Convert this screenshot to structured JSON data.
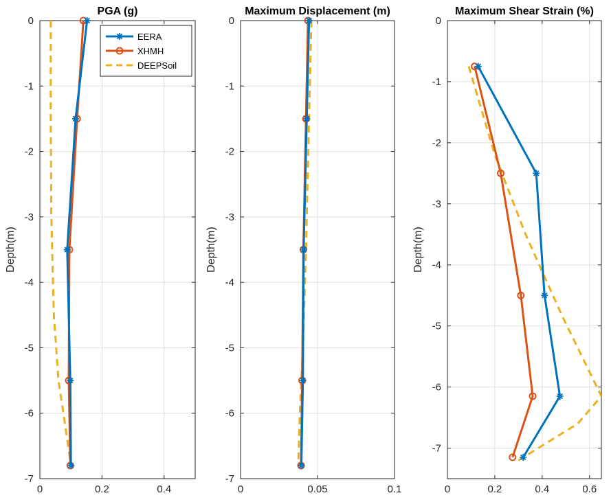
{
  "chart_data": [
    {
      "type": "line",
      "title": "PGA (g)",
      "xlabel": "",
      "ylabel": "Depth(m)",
      "xlim": [
        0,
        0.5
      ],
      "ylim": [
        -7,
        0
      ],
      "xticks": [
        "0",
        "0.2",
        "0.4"
      ],
      "xtick_values": [
        0,
        0.2,
        0.4
      ],
      "yticks": [
        "0",
        "-1",
        "-2",
        "-3",
        "-4",
        "-5",
        "-6",
        "-7"
      ],
      "ytick_values": [
        0,
        -1,
        -2,
        -3,
        -4,
        -5,
        -6,
        -7
      ],
      "grid": true,
      "legend": "top-right",
      "series": [
        {
          "name": "EERA",
          "color": "#0072BD",
          "marker": "star",
          "style": "solid",
          "x": [
            0.152,
            0.115,
            0.088,
            0.098,
            0.1
          ],
          "y": [
            0,
            -1.5,
            -3.5,
            -5.5,
            -6.8
          ]
        },
        {
          "name": "XHMH",
          "color": "#D95319",
          "marker": "circle",
          "style": "solid",
          "x": [
            0.14,
            0.12,
            0.095,
            0.093,
            0.098
          ],
          "y": [
            0,
            -1.5,
            -3.5,
            -5.5,
            -6.8
          ]
        },
        {
          "name": "DEEPSoil",
          "color": "#EDB120",
          "marker": "none",
          "style": "dashed",
          "x": [
            0.035,
            0.035,
            0.037,
            0.045,
            0.06,
            0.085,
            0.1
          ],
          "y": [
            0,
            -1.5,
            -3.0,
            -4.5,
            -5.5,
            -6.3,
            -6.8
          ]
        }
      ]
    },
    {
      "type": "line",
      "title": "Maximum  Displacement (m)",
      "xlabel": "",
      "ylabel": "Depth(m)",
      "xlim": [
        0,
        0.1
      ],
      "ylim": [
        -7,
        0
      ],
      "xticks": [
        "0",
        "0.05",
        "0.1"
      ],
      "xtick_values": [
        0,
        0.05,
        0.1
      ],
      "yticks": [
        "0",
        "-1",
        "-2",
        "-3",
        "-4",
        "-5",
        "-6",
        "-7"
      ],
      "ytick_values": [
        0,
        -1,
        -2,
        -3,
        -4,
        -5,
        -6,
        -7
      ],
      "grid": true,
      "series": [
        {
          "name": "EERA",
          "color": "#0072BD",
          "marker": "star",
          "style": "solid",
          "x": [
            0.0445,
            0.043,
            0.041,
            0.0405,
            0.0395
          ],
          "y": [
            0,
            -1.5,
            -3.5,
            -5.5,
            -6.8
          ]
        },
        {
          "name": "XHMH",
          "color": "#D95319",
          "marker": "circle",
          "style": "solid",
          "x": [
            0.0438,
            0.0425,
            0.0408,
            0.04,
            0.0393
          ],
          "y": [
            0,
            -1.5,
            -3.5,
            -5.5,
            -6.8
          ]
        },
        {
          "name": "DEEPSoil",
          "color": "#EDB120",
          "marker": "none",
          "style": "dashed",
          "x": [
            0.046,
            0.0445,
            0.0425,
            0.0405,
            0.0385,
            0.0375
          ],
          "y": [
            0,
            -1.5,
            -3.5,
            -5.0,
            -6.0,
            -6.8
          ]
        }
      ]
    },
    {
      "type": "line",
      "title": "Maximum Shear Strain (%)",
      "xlabel": "",
      "ylabel": "Depth(m)",
      "xlim": [
        0,
        0.65
      ],
      "ylim": [
        -7.5,
        0
      ],
      "xticks": [
        "0",
        "0.2",
        "0.4",
        "0.6"
      ],
      "xtick_values": [
        0,
        0.2,
        0.4,
        0.6
      ],
      "yticks": [
        "0",
        "-1",
        "-2",
        "-3",
        "-4",
        "-5",
        "-6",
        "-7"
      ],
      "ytick_values": [
        0,
        -1,
        -2,
        -3,
        -4,
        -5,
        -6,
        -7
      ],
      "grid": true,
      "series": [
        {
          "name": "EERA",
          "color": "#0072BD",
          "marker": "star",
          "style": "solid",
          "x": [
            0.13,
            0.375,
            0.41,
            0.475,
            0.32
          ],
          "y": [
            -0.75,
            -2.5,
            -4.5,
            -6.15,
            -7.15
          ]
        },
        {
          "name": "XHMH",
          "color": "#D95319",
          "marker": "circle",
          "style": "solid",
          "x": [
            0.115,
            0.225,
            0.31,
            0.36,
            0.275
          ],
          "y": [
            -0.75,
            -2.5,
            -4.5,
            -6.15,
            -7.15
          ]
        },
        {
          "name": "DEEPSoil",
          "color": "#EDB120",
          "marker": "none",
          "style": "dashed",
          "x": [
            0.09,
            0.2,
            0.33,
            0.48,
            0.65,
            0.55,
            0.3
          ],
          "y": [
            -0.75,
            -2.2,
            -3.5,
            -4.8,
            -6.15,
            -6.6,
            -7.2
          ]
        }
      ]
    }
  ]
}
